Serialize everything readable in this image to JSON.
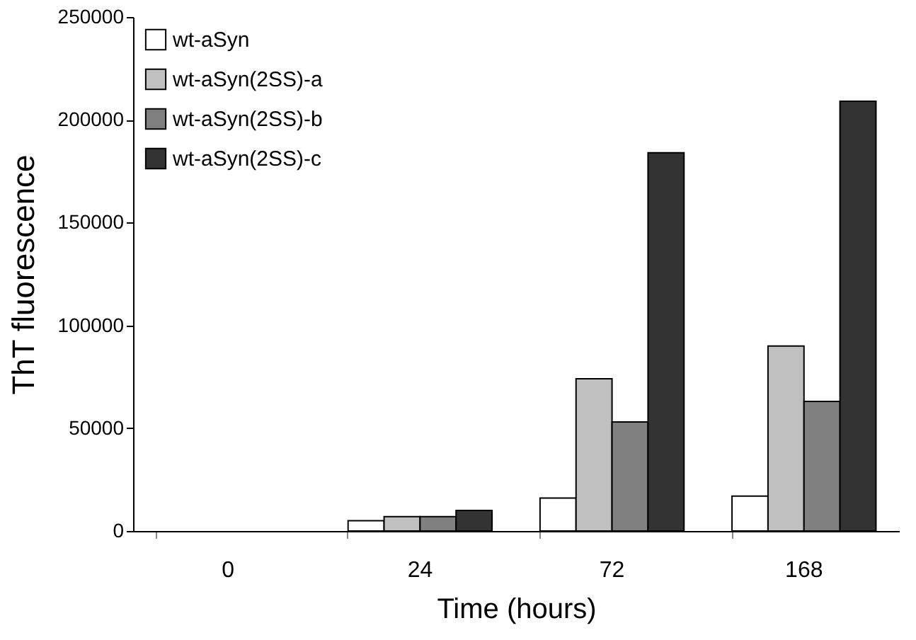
{
  "chart_data": {
    "type": "bar",
    "xlabel": "Time  (hours)",
    "ylabel": "ThT fluorescence",
    "categories": [
      "0",
      "24",
      "72",
      "168"
    ],
    "series": [
      {
        "name": "wt-aSyn",
        "color": "#ffffff",
        "values": [
          null,
          5000,
          16000,
          17000
        ]
      },
      {
        "name": "wt-aSyn(2SS)-a",
        "color": "#c0c0c0",
        "values": [
          null,
          7000,
          74000,
          90000
        ]
      },
      {
        "name": "wt-aSyn(2SS)-b",
        "color": "#808080",
        "values": [
          null,
          7000,
          53000,
          63000
        ]
      },
      {
        "name": "wt-aSyn(2SS)-c",
        "color": "#333333",
        "values": [
          null,
          10000,
          184000,
          209000
        ]
      }
    ],
    "ylim": [
      0,
      250000
    ],
    "yticks": [
      0,
      50000,
      100000,
      150000,
      200000,
      250000
    ],
    "grid": false,
    "legend": "top left"
  }
}
